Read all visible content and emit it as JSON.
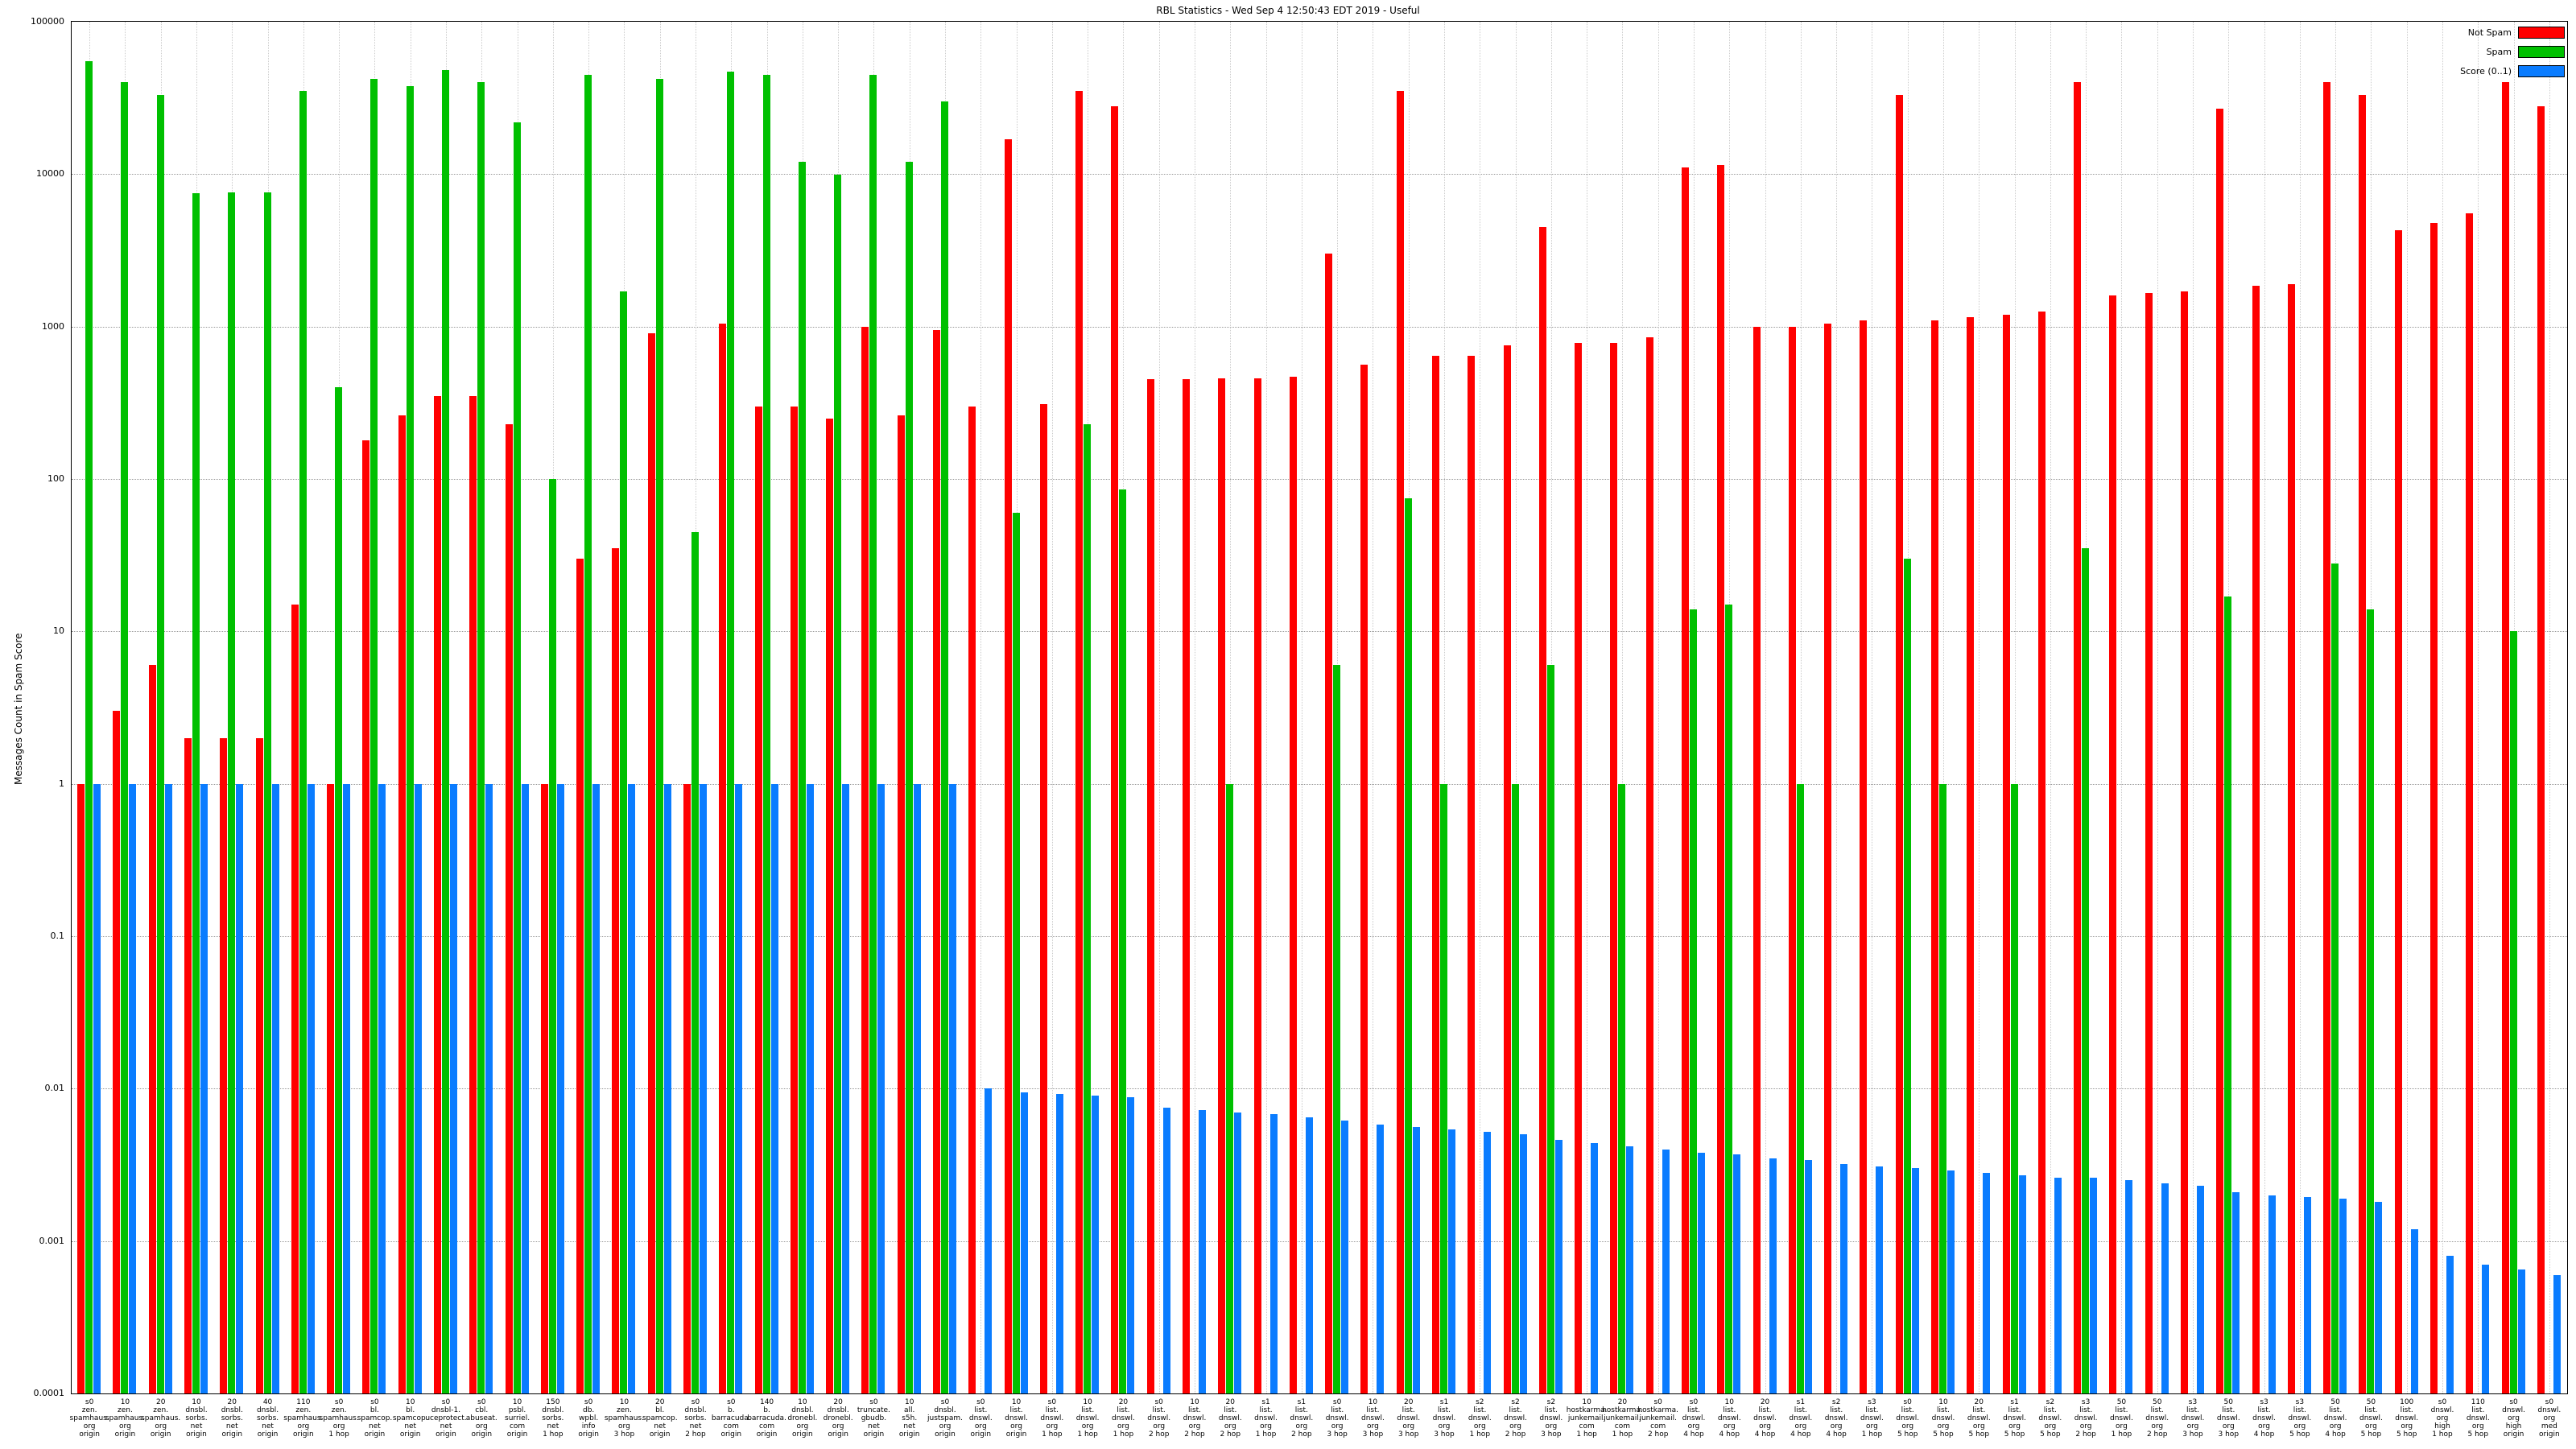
{
  "chart_data": {
    "type": "bar",
    "title": "RBL Statistics - Wed Sep 4 12:50:43 EDT 2019 - Useful",
    "ylabel": "Messages Count in Spam Score",
    "yscale": "log",
    "ylim": [
      0.0001,
      100000
    ],
    "grid": true,
    "legend_position": "top-right",
    "yticks": [
      "100000",
      "10000",
      "1000",
      "100",
      "10",
      "1",
      "0.1",
      "0.01",
      "0.001",
      "0.0001"
    ],
    "categories": [
      "s0\nzen.\nspamhaus.\norg\norigin",
      "10\nzen.\nspamhaus.\norg\norigin",
      "20\nzen.\nspamhaus.\norg\norigin",
      "10\ndnsbl.\nsorbs.\nnet\norigin",
      "20\ndnsbl.\nsorbs.\nnet\norigin",
      "40\ndnsbl.\nsorbs.\nnet\norigin",
      "110\nzen.\nspamhaus.\norg\norigin",
      "s0\nzen.\nspamhaus.\norg\n1 hop",
      "s0\nbl.\nspamcop.\nnet\norigin",
      "10\nbl.\nspamcop.\nnet\norigin",
      "s0\ndnsbl-1.\nuceprotect.\nnet\norigin",
      "s0\ncbl.\nabuseat.\norg\norigin",
      "10\npsbl.\nsurriel.\ncom\norigin",
      "150\ndnsbl.\nsorbs.\nnet\n1 hop",
      "s0\ndb.\nwpbl.\ninfo\norigin",
      "10\nzen.\nspamhaus.\norg\n3 hop",
      "20\nbl.\nspamcop.\nnet\norigin",
      "s0\ndnsbl.\nsorbs.\nnet\n2 hop",
      "s0\nb.\nbarracuda.\ncom\norigin",
      "140\nb.\nbarracuda.\ncom\norigin",
      "10\ndnsbl.\ndronebl.\norg\norigin",
      "20\ndnsbl.\ndronebl.\norg\norigin",
      "s0\ntruncate.\ngbudb.\nnet\norigin",
      "10\nall.\ns5h.\nnet\norigin",
      "s0\ndnsbl.\njustspam.\norg\norigin",
      "s0\nlist.\ndnswl.\norg\norigin",
      "10\nlist.\ndnswl.\norg\norigin",
      "s0\nlist.\ndnswl.\norg\n1 hop",
      "10\nlist.\ndnswl.\norg\n1 hop",
      "20\nlist.\ndnswl.\norg\n1 hop",
      "s0\nlist.\ndnswl.\norg\n2 hop",
      "10\nlist.\ndnswl.\norg\n2 hop",
      "20\nlist.\ndnswl.\norg\n2 hop",
      "s1\nlist.\ndnswl.\norg\n1 hop",
      "s1\nlist.\ndnswl.\norg\n2 hop",
      "s0\nlist.\ndnswl.\norg\n3 hop",
      "10\nlist.\ndnswl.\norg\n3 hop",
      "20\nlist.\ndnswl.\norg\n3 hop",
      "s1\nlist.\ndnswl.\norg\n3 hop",
      "s2\nlist.\ndnswl.\norg\n1 hop",
      "s2\nlist.\ndnswl.\norg\n2 hop",
      "s2\nlist.\ndnswl.\norg\n3 hop",
      "10\nhostkarma.\njunkemail.\ncom\n1 hop",
      "20\nhostkarma.\njunkemail.\ncom\n1 hop",
      "s0\nhostkarma.\njunkemail.\ncom\n2 hop",
      "s0\nlist.\ndnswl.\norg\n4 hop",
      "10\nlist.\ndnswl.\norg\n4 hop",
      "20\nlist.\ndnswl.\norg\n4 hop",
      "s1\nlist.\ndnswl.\norg\n4 hop",
      "s2\nlist.\ndnswl.\norg\n4 hop",
      "s3\nlist.\ndnswl.\norg\n1 hop",
      "s0\nlist.\ndnswl.\norg\n5 hop",
      "10\nlist.\ndnswl.\norg\n5 hop",
      "20\nlist.\ndnswl.\norg\n5 hop",
      "s1\nlist.\ndnswl.\norg\n5 hop",
      "s2\nlist.\ndnswl.\norg\n5 hop",
      "s3\nlist.\ndnswl.\norg\n2 hop",
      "50\nlist.\ndnswl.\norg\n1 hop",
      "50\nlist.\ndnswl.\norg\n2 hop",
      "s3\nlist.\ndnswl.\norg\n3 hop",
      "50\nlist.\ndnswl.\norg\n3 hop",
      "s3\nlist.\ndnswl.\norg\n4 hop",
      "s3\nlist.\ndnswl.\norg\n5 hop",
      "50\nlist.\ndnswl.\norg\n4 hop",
      "50\nlist.\ndnswl.\norg\n5 hop",
      "100\nlist.\ndnswl.\norg\n5 hop",
      "s0\ndnswl.\norg\nhigh\n1 hop",
      "110\nlist.\ndnswl.\norg\n5 hop",
      "s0\ndnswl.\norg\nhigh\norigin",
      "s0\ndnswl.\norg\nmed\norigin"
    ],
    "series": [
      {
        "name": "Not Spam",
        "color": "#ff0000",
        "values": [
          1,
          3,
          6,
          2,
          2,
          2,
          15,
          1,
          180,
          260,
          350,
          350,
          230,
          1,
          30,
          35,
          900,
          1,
          1050,
          300,
          300,
          250,
          1000,
          260,
          950,
          300,
          17000,
          310,
          35000,
          28000,
          450,
          450,
          460,
          460,
          470,
          3000,
          560,
          35000,
          640,
          640,
          750,
          4500,
          780,
          780,
          850,
          11000,
          11500,
          1000,
          1000,
          1050,
          1100,
          33000,
          1100,
          1150,
          1200,
          1250,
          40000,
          1600,
          1650,
          1700,
          27000,
          1850,
          1900,
          40000,
          33000,
          4300,
          4800,
          5500,
          40000,
          28000
        ]
      },
      {
        "name": "Spam",
        "color": "#00c000",
        "values": [
          55000,
          40000,
          33000,
          7500,
          7600,
          7600,
          35000,
          400,
          42000,
          38000,
          48000,
          40000,
          22000,
          100,
          45000,
          1700,
          42000,
          45,
          47000,
          45000,
          12000,
          9900,
          45000,
          12000,
          30000,
          null,
          60,
          null,
          230,
          85,
          null,
          null,
          1,
          null,
          null,
          6,
          null,
          75,
          1,
          null,
          1,
          6,
          null,
          1,
          null,
          14,
          15,
          null,
          1,
          null,
          null,
          30,
          1,
          null,
          1,
          null,
          35,
          null,
          null,
          null,
          17,
          null,
          null,
          28,
          14,
          null,
          null,
          null,
          10,
          null
        ]
      },
      {
        "name": "Score (0..1)",
        "color": "#0a7cff",
        "values": [
          1,
          1,
          1,
          1,
          1,
          1,
          1,
          1,
          1,
          1,
          1,
          1,
          1,
          1,
          1,
          1,
          1,
          1,
          1,
          1,
          1,
          1,
          1,
          1,
          1,
          0.01,
          0.0095,
          0.0092,
          0.009,
          0.0088,
          0.0075,
          0.0072,
          0.007,
          0.0068,
          0.0065,
          0.0062,
          0.0058,
          0.0056,
          0.0054,
          0.0052,
          0.005,
          0.0046,
          0.0044,
          0.0042,
          0.004,
          0.0038,
          0.0037,
          0.0035,
          0.0034,
          0.0032,
          0.0031,
          0.003,
          0.0029,
          0.0028,
          0.0027,
          0.0026,
          0.0026,
          0.0025,
          0.0024,
          0.0023,
          0.0021,
          0.002,
          0.00195,
          0.0019,
          0.0018,
          0.0012,
          0.0008,
          0.0007,
          0.00065,
          0.0006
        ]
      }
    ]
  }
}
